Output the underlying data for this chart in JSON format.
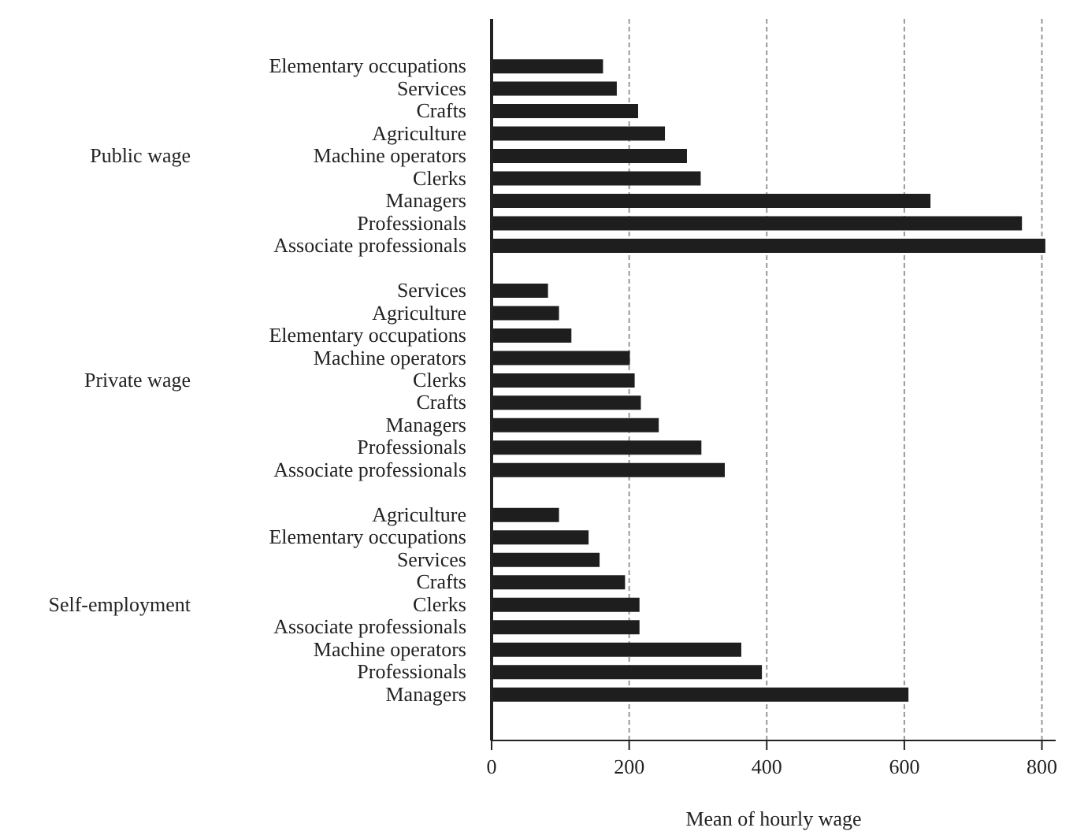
{
  "chart_data": {
    "type": "bar",
    "orientation": "horizontal",
    "xlabel": "Mean of hourly wage",
    "categories": [
      "Elementary occupations",
      "Services",
      "Crafts",
      "Agriculture",
      "Machine operators",
      "Clerks",
      "Managers",
      "Professionals",
      "Associate professionals",
      null,
      "Services",
      "Agriculture",
      "Elementary occupations",
      "Machine operators",
      "Clerks",
      "Crafts",
      "Managers",
      "Professionals",
      "Associate professionals",
      null,
      "Agriculture",
      "Elementary occupations",
      "Services",
      "Crafts",
      "Clerks",
      "Associate professionals",
      "Machine operators",
      "Professionals",
      "Managers"
    ],
    "values": [
      162,
      182,
      213,
      252,
      284,
      304,
      638,
      771,
      805,
      null,
      82,
      98,
      116,
      201,
      208,
      217,
      243,
      305,
      339,
      null,
      98,
      141,
      157,
      194,
      215,
      215,
      363,
      393,
      606
    ],
    "color": "#1e1e1e",
    "annotations": [
      "Public wage",
      "Private wage",
      "Self-employment"
    ],
    "xlim": [
      0,
      820
    ],
    "xticks": [
      0,
      200,
      400,
      600,
      800
    ],
    "grid": "x"
  }
}
